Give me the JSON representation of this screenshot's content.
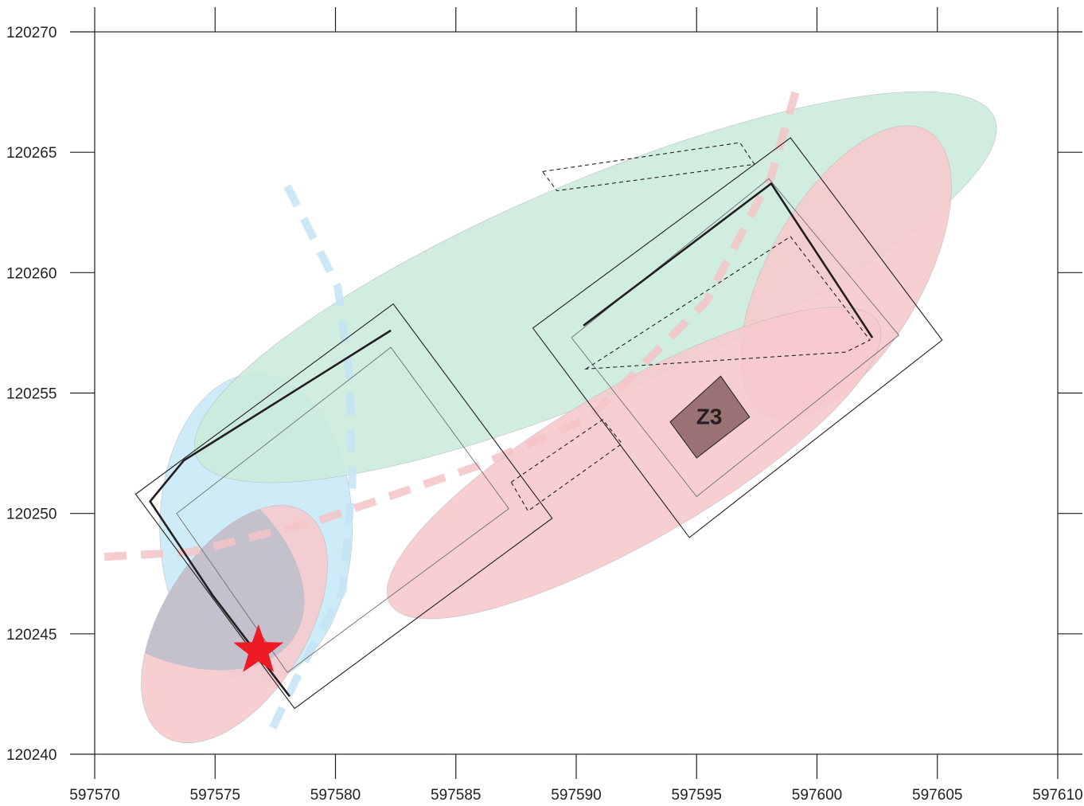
{
  "chart_data": {
    "type": "map",
    "title": "",
    "xlabel": "",
    "ylabel": "",
    "xlim": [
      597570,
      597610
    ],
    "ylim": [
      120240,
      120270
    ],
    "grid": false,
    "x_ticks": [
      597570,
      597575,
      597580,
      597585,
      597590,
      597595,
      597600,
      597605,
      597610
    ],
    "y_ticks": [
      120240,
      120245,
      120250,
      120255,
      120260,
      120265,
      120270
    ],
    "x_tick_labels": [
      "597570",
      "597575",
      "597580",
      "597585",
      "597590",
      "597595",
      "597600",
      "597605",
      "597610"
    ],
    "y_tick_labels": [
      "120240",
      "120245",
      "120250",
      "120255",
      "120260",
      "120265",
      "120270"
    ],
    "colors": {
      "blue_zone": "#c9e9f7",
      "green_zone": "#cbebdc",
      "red_zone": "#f6cacc",
      "overlap_zone": "#c4c0cc",
      "blue_dash_line": "#c3e4f5",
      "red_dash_line": "#f3c4c7",
      "z3_fill": "#9b7274",
      "star": "#ed1c24",
      "line": "#231f20"
    },
    "ellipses": [
      {
        "name": "blue-zone",
        "color": "#c9e9f7",
        "cx": 597576.7,
        "cy": 120249.4,
        "rx": 4.0,
        "ry": 6.4,
        "angle": 0
      },
      {
        "name": "green-zone",
        "color": "#cbebdc",
        "cx": 597590.8,
        "cy": 120259.4,
        "rx": 18.0,
        "ry": 4.4,
        "angle": 23
      },
      {
        "name": "red-zone-top-right",
        "color": "#f6cacc",
        "cx": 597601.2,
        "cy": 120260.0,
        "rx": 6.8,
        "ry": 3.2,
        "angle": 60
      },
      {
        "name": "red-zone-middle",
        "color": "#f6cacc",
        "cx": 597592.4,
        "cy": 120252.1,
        "rx": 11.7,
        "ry": 3.2,
        "angle": 30
      },
      {
        "name": "red-zone-bottom-left",
        "color": "#f6cacc",
        "cx": 597575.8,
        "cy": 120245.4,
        "rx": 5.5,
        "ry": 3.0,
        "angle": 58
      }
    ],
    "dashed_paths": [
      {
        "name": "blue-dashed-trend",
        "color": "#c3e4f5",
        "points": [
          [
            597578.0,
            120263.6
          ],
          [
            597580.1,
            120259.4
          ],
          [
            597580.6,
            120255.6
          ],
          [
            597580.7,
            120251.3
          ],
          [
            597580.3,
            120246.8
          ],
          [
            597578.7,
            120243.8
          ],
          [
            597577.2,
            120240.7
          ]
        ]
      },
      {
        "name": "red-dashed-trend",
        "color": "#f3c4c7",
        "points": [
          [
            597570.4,
            120248.2
          ],
          [
            597574.0,
            120248.4
          ],
          [
            597579.3,
            120249.7
          ],
          [
            597586.0,
            120252.0
          ],
          [
            597590.6,
            120254.0
          ],
          [
            597595.4,
            120258.8
          ],
          [
            597598.1,
            120264.0
          ],
          [
            597599.2,
            120267.8
          ]
        ]
      }
    ],
    "outlines": [
      {
        "name": "left-outer-rectangle",
        "style": "thin",
        "points": [
          [
            597571.7,
            120250.8
          ],
          [
            597582.4,
            120258.7
          ],
          [
            597589.0,
            120249.8
          ],
          [
            597578.3,
            120241.9
          ]
        ]
      },
      {
        "name": "left-inner-rectangle",
        "style": "thin-gray",
        "points": [
          [
            597573.4,
            120250.0
          ],
          [
            597582.3,
            120256.9
          ],
          [
            597587.2,
            120250.2
          ],
          [
            597578.0,
            120243.4
          ]
        ]
      },
      {
        "name": "right-outer-rectangle",
        "style": "thin",
        "points": [
          [
            597588.2,
            120257.7
          ],
          [
            597598.9,
            120265.6
          ],
          [
            597605.2,
            120257.2
          ],
          [
            597594.7,
            120249.0
          ]
        ]
      },
      {
        "name": "right-inner-rectangle",
        "style": "thin-gray",
        "points": [
          [
            597589.8,
            120257.3
          ],
          [
            597598.0,
            120263.9
          ],
          [
            597603.4,
            120257.4
          ],
          [
            597595.0,
            120250.7
          ]
        ]
      },
      {
        "name": "dashed-box-top",
        "style": "dashed",
        "points": [
          [
            597588.6,
            120264.2
          ],
          [
            597596.8,
            120265.4
          ],
          [
            597597.4,
            120264.5
          ],
          [
            597589.2,
            120263.4
          ]
        ]
      },
      {
        "name": "dashed-box-right",
        "style": "dashed",
        "points": [
          [
            597590.4,
            120256.0
          ],
          [
            597598.9,
            120261.5
          ],
          [
            597602.2,
            120257.2
          ],
          [
            597601.2,
            120256.7
          ]
        ]
      },
      {
        "name": "dashed-box-left-middle",
        "style": "dashed",
        "points": [
          [
            597587.3,
            120251.3
          ],
          [
            597591.1,
            120253.9
          ],
          [
            597591.9,
            120252.9
          ],
          [
            597588.0,
            120250.1
          ]
        ]
      }
    ],
    "solid_paths": [
      {
        "name": "left-borehole-trace",
        "points": [
          [
            597582.3,
            120257.6
          ],
          [
            597573.7,
            120252.2
          ],
          [
            597572.3,
            120250.5
          ],
          [
            597574.9,
            120246.6
          ],
          [
            597578.1,
            120242.4
          ]
        ]
      },
      {
        "name": "right-borehole-trace",
        "points": [
          [
            597590.3,
            120257.8
          ],
          [
            597598.1,
            120263.7
          ],
          [
            597602.3,
            120257.3
          ]
        ]
      }
    ],
    "z3_zone": {
      "label": "Z3",
      "points": [
        [
          597593.9,
          120253.8
        ],
        [
          597596.0,
          120255.7
        ],
        [
          597597.2,
          120254.0
        ],
        [
          597595.0,
          120252.3
        ]
      ]
    },
    "star_point": {
      "name": "star-marker",
      "x": 597576.8,
      "y": 120244.3
    }
  }
}
